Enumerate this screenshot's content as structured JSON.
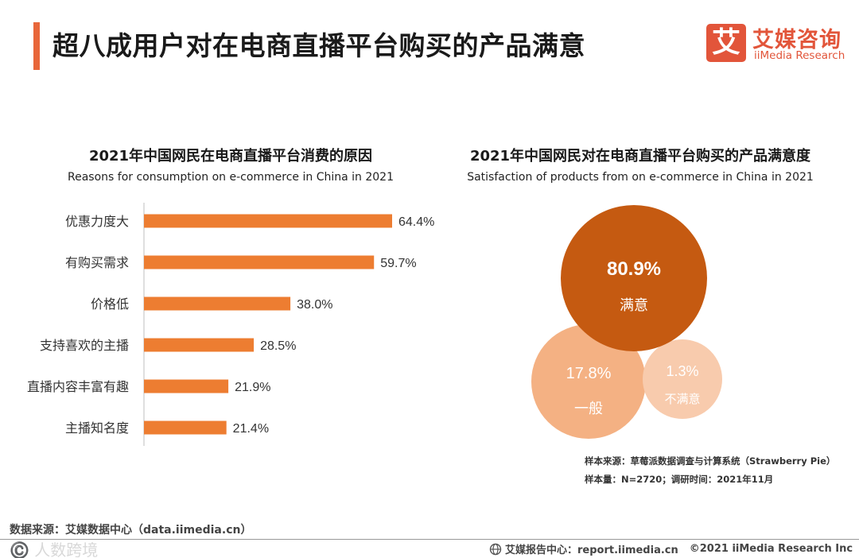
{
  "header": {
    "title": "超八成用户对在电商直播平台购买的产品满意",
    "logo_mark": "艾",
    "logo_cn": "艾媒咨询",
    "logo_en": "iiMedia Research"
  },
  "left_chart": {
    "title": "2021年中国网民在电商直播平台消费的原因",
    "subtitle": "Reasons for consumption on e-commerce in China in 2021"
  },
  "right_chart": {
    "title": "2021年中国网民对在电商直播平台购买的产品满意度",
    "subtitle": "Satisfaction of products from on e-commerce in China in 2021"
  },
  "chart_data": [
    {
      "type": "bar",
      "orientation": "horizontal",
      "title": "2021年中国网民在电商直播平台消费的原因",
      "subtitle": "Reasons for consumption on e-commerce in China in 2021",
      "categories": [
        "优惠力度大",
        "有购买需求",
        "价格低",
        "支持喜欢的主播",
        "直播内容丰富有趣",
        "主播知名度"
      ],
      "values": [
        64.4,
        59.7,
        38.0,
        28.5,
        21.9,
        21.4
      ],
      "value_labels": [
        "64.4%",
        "59.7%",
        "38.0%",
        "28.5%",
        "21.9%",
        "21.4%"
      ],
      "unit": "%",
      "xlim": [
        0,
        100
      ],
      "color": "#ed7d31"
    },
    {
      "type": "bubble",
      "title": "2021年中国网民对在电商直播平台购买的产品满意度",
      "subtitle": "Satisfaction of products from on e-commerce in China in 2021",
      "categories": [
        "满意",
        "一般",
        "不满意"
      ],
      "values": [
        80.9,
        17.8,
        1.3
      ],
      "value_labels": [
        "80.9%",
        "17.8%",
        "1.3%"
      ],
      "unit": "%",
      "colors": [
        "#c55a11",
        "#f4b183",
        "#f8cbad"
      ]
    }
  ],
  "notes": {
    "sample_source": "样本来源：草莓派数据调查与计算系统（Strawberry Pie）",
    "sample_size": "样本量：N=2720；调研时间：2021年11月"
  },
  "footer": {
    "source": "数据来源：艾媒数据中心（data.iimedia.cn）",
    "watermark": "©️ 人数跨境",
    "report_center": "艾媒报告中心：report.iimedia.cn",
    "copyright": "©2021  iiMedia Research Inc"
  }
}
